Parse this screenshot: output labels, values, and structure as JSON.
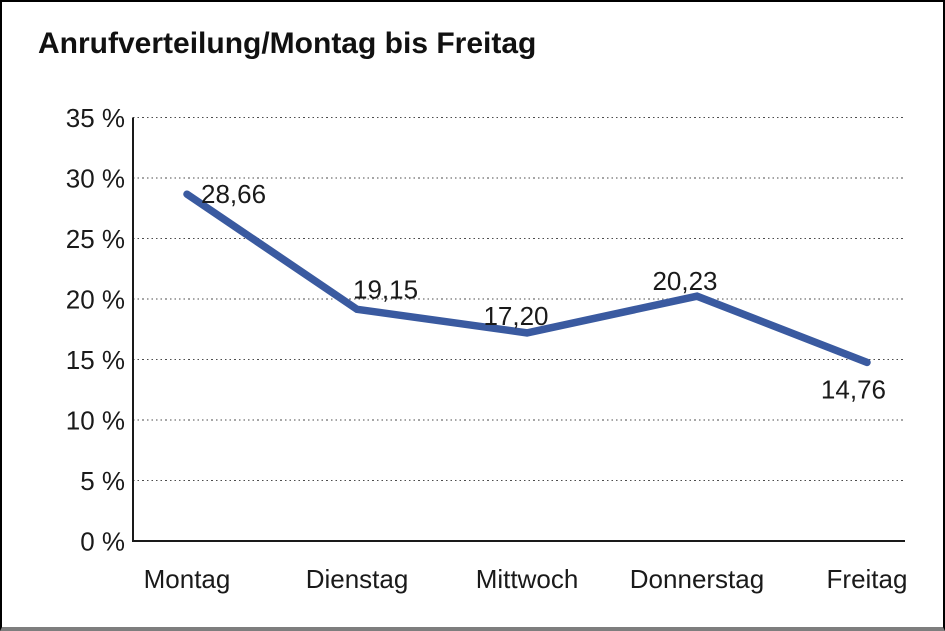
{
  "page": {
    "title": "Anrufverteilung/Montag bis Freitag"
  },
  "chart_data": {
    "type": "line",
    "title": "Anrufverteilung/Montag bis Freitag",
    "categories": [
      "Montag",
      "Dienstag",
      "Mittwoch",
      "Donnerstag",
      "Freitag"
    ],
    "values": [
      28.66,
      19.15,
      17.2,
      20.23,
      14.76
    ],
    "data_labels": [
      "28,66",
      "19,15",
      "17,20",
      "20,23",
      "14,76"
    ],
    "xlabel": "",
    "ylabel": "",
    "ylim": [
      0,
      35
    ],
    "ytick_step": 5,
    "y_tick_labels": [
      "0 %",
      "5 %",
      "10 %",
      "15 %",
      "20 %",
      "25 %",
      "30 %",
      "35 %"
    ],
    "grid": "horizontal dotted gridlines at each 5% tick, none at 0%",
    "legend": "none",
    "line_color": "#3A5AA0",
    "axis_color": "#1a1a1a",
    "text_color": "#1a1a1a"
  }
}
